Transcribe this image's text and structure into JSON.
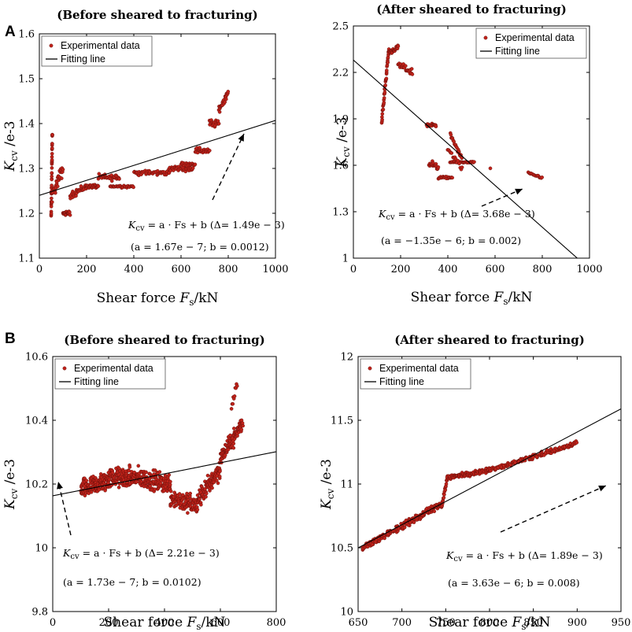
{
  "panels": [
    {
      "letter": "A"
    },
    {
      "letter": "B"
    }
  ],
  "chart_data": [
    {
      "id": "A_left",
      "type": "scatter",
      "panel": "A",
      "title": "(Before sheared to fracturing)",
      "xlabel_text": "Shear force ",
      "xlabel_sym": "F",
      "xlabel_sub": "s",
      "xlabel_unit": "/kN",
      "ylabel_sym": "K",
      "ylabel_sub": "cv",
      "ylabel_unit": " /e-3",
      "xlim": [
        0,
        1000
      ],
      "ylim": [
        1.1,
        1.6
      ],
      "xticks": [
        0,
        200,
        400,
        600,
        800,
        1000
      ],
      "yticks": [
        1.1,
        1.2,
        1.3,
        1.4,
        1.5,
        1.6
      ],
      "xtick_labels": [
        "0",
        "200",
        "400",
        "600",
        "800",
        "1000"
      ],
      "ytick_labels": [
        "1.1",
        "1.2",
        "1.3",
        "1.4",
        "1.5",
        "1.6"
      ],
      "legend": [
        "Experimental data",
        "Fitting line"
      ],
      "legend_position": "top-left",
      "fit": {
        "slope": 0.000167,
        "intercept": 1.24
      },
      "equation": "K_cv = a · Fs + b (Δ= 1.49e − 3)",
      "equation_lhs": "K",
      "equation_lhs_sub": "cv",
      "equation_rhs": " = a · Fs + b (Δ= 1.49e − 3)",
      "params": "(a = 1.67e − 7; b = 0.0012)",
      "series_segments": [
        {
          "x": [
            50,
            55
          ],
          "y": [
            1.19,
            1.38
          ],
          "n": 40,
          "jitter": 0.015
        },
        {
          "x": [
            55,
            100
          ],
          "y": [
            1.24,
            1.3
          ],
          "n": 30,
          "jitter": 0.02
        },
        {
          "x": [
            100,
            130
          ],
          "y": [
            1.2,
            1.2
          ],
          "n": 20,
          "jitter": 0.006
        },
        {
          "x": [
            130,
            200
          ],
          "y": [
            1.24,
            1.26
          ],
          "n": 30,
          "jitter": 0.012
        },
        {
          "x": [
            200,
            250
          ],
          "y": [
            1.26,
            1.26
          ],
          "n": 25,
          "jitter": 0.006
        },
        {
          "x": [
            250,
            340
          ],
          "y": [
            1.28,
            1.28
          ],
          "n": 35,
          "jitter": 0.01
        },
        {
          "x": [
            300,
            400
          ],
          "y": [
            1.26,
            1.26
          ],
          "n": 30,
          "jitter": 0.004
        },
        {
          "x": [
            400,
            550
          ],
          "y": [
            1.29,
            1.29
          ],
          "n": 50,
          "jitter": 0.008
        },
        {
          "x": [
            550,
            650
          ],
          "y": [
            1.3,
            1.3
          ],
          "n": 40,
          "jitter": 0.008
        },
        {
          "x": [
            600,
            660
          ],
          "y": [
            1.31,
            1.31
          ],
          "n": 20,
          "jitter": 0.005
        },
        {
          "x": [
            660,
            720
          ],
          "y": [
            1.34,
            1.34
          ],
          "n": 25,
          "jitter": 0.01
        },
        {
          "x": [
            720,
            760
          ],
          "y": [
            1.4,
            1.4
          ],
          "n": 20,
          "jitter": 0.012
        },
        {
          "x": [
            760,
            800
          ],
          "y": [
            1.43,
            1.47
          ],
          "n": 25,
          "jitter": 0.01
        }
      ]
    },
    {
      "id": "A_right",
      "type": "scatter",
      "panel": "A",
      "title": "(After sheared to fracturing)",
      "xlabel_text": "Shear force ",
      "xlabel_sym": "F",
      "xlabel_sub": "s",
      "xlabel_unit": "/kN",
      "ylabel_sym": "K",
      "ylabel_sub": "cv",
      "ylabel_unit": " /e-3",
      "xlim": [
        0,
        1000
      ],
      "ylim": [
        1,
        2.5
      ],
      "xticks": [
        0,
        200,
        400,
        600,
        800,
        1000
      ],
      "yticks": [
        1,
        1.3,
        1.6,
        1.9,
        2.2,
        2.5
      ],
      "xtick_labels": [
        "0",
        "200",
        "400",
        "600",
        "800",
        "1000"
      ],
      "ytick_labels": [
        "1",
        "1.3",
        "1.6",
        "1.9",
        "2.2",
        "2.5"
      ],
      "legend": [
        "Experimental data",
        "Fitting line"
      ],
      "legend_position": "top-right",
      "fit": {
        "slope": -0.00135,
        "intercept": 2.28
      },
      "equation": "K_cv = a · Fs + b (Δ= 3.68e − 3)",
      "equation_lhs": "K",
      "equation_lhs_sub": "cv",
      "equation_rhs": " = a · Fs + b (Δ= 3.68e − 3)",
      "params": "(a = −1.35e − 6; b = 0.002)",
      "series_segments": [
        {
          "x": [
            120,
            150
          ],
          "y": [
            1.88,
            2.35
          ],
          "n": 40,
          "jitter": 0.03
        },
        {
          "x": [
            150,
            190
          ],
          "y": [
            2.33,
            2.36
          ],
          "n": 25,
          "jitter": 0.02
        },
        {
          "x": [
            190,
            250
          ],
          "y": [
            2.25,
            2.2
          ],
          "n": 25,
          "jitter": 0.03
        },
        {
          "x": [
            310,
            350
          ],
          "y": [
            1.86,
            1.86
          ],
          "n": 20,
          "jitter": 0.02
        },
        {
          "x": [
            320,
            360
          ],
          "y": [
            1.62,
            1.58
          ],
          "n": 20,
          "jitter": 0.03
        },
        {
          "x": [
            360,
            420
          ],
          "y": [
            1.52,
            1.52
          ],
          "n": 20,
          "jitter": 0.01
        },
        {
          "x": [
            410,
            510
          ],
          "y": [
            1.62,
            1.62
          ],
          "n": 35,
          "jitter": 0.006
        },
        {
          "x": [
            410,
            460
          ],
          "y": [
            1.8,
            1.64
          ],
          "n": 20,
          "jitter": 0.02
        },
        {
          "x": [
            400,
            460
          ],
          "y": [
            1.7,
            1.58
          ],
          "n": 15,
          "jitter": 0.03
        },
        {
          "x": [
            580,
            580
          ],
          "y": [
            1.58,
            1.58
          ],
          "n": 1,
          "jitter": 0.0
        },
        {
          "x": [
            740,
            800
          ],
          "y": [
            1.55,
            1.52
          ],
          "n": 15,
          "jitter": 0.01
        }
      ]
    },
    {
      "id": "B_left",
      "type": "scatter",
      "panel": "B",
      "title": "(Before sheared to fracturing)",
      "xlabel_text": "Shear force ",
      "xlabel_sym": "F",
      "xlabel_sub": "s",
      "xlabel_unit": "/kN",
      "ylabel_sym": "K",
      "ylabel_sub": "cv",
      "ylabel_unit": " /e-3",
      "xlim": [
        0,
        800
      ],
      "ylim": [
        9.8,
        10.6
      ],
      "xticks": [
        0,
        200,
        400,
        600,
        800
      ],
      "yticks": [
        9.8,
        10,
        10.2,
        10.4,
        10.6
      ],
      "xtick_labels": [
        "0",
        "200",
        "400",
        "600",
        "800"
      ],
      "ytick_labels": [
        "9.8",
        "10",
        "10.2",
        "10.4",
        "10.6"
      ],
      "legend": [
        "Experimental data",
        "Fitting line"
      ],
      "legend_position": "top-left",
      "fit": {
        "slope": 0.000173,
        "intercept": 10.163
      },
      "equation": "K_cv = a · Fs + b (Δ= 2.21e − 3)",
      "equation_lhs": "K",
      "equation_lhs_sub": "cv",
      "equation_rhs": " = a · Fs + b (Δ= 2.21e − 3)",
      "params": "(a = 1.73e − 7; b = 0.0102)",
      "series_segments": [
        {
          "x": [
            100,
            200
          ],
          "y": [
            10.18,
            10.21
          ],
          "n": 140,
          "jitter": 0.045
        },
        {
          "x": [
            200,
            300
          ],
          "y": [
            10.22,
            10.22
          ],
          "n": 140,
          "jitter": 0.045
        },
        {
          "x": [
            300,
            420
          ],
          "y": [
            10.22,
            10.2
          ],
          "n": 150,
          "jitter": 0.045
        },
        {
          "x": [
            420,
            520
          ],
          "y": [
            10.16,
            10.13
          ],
          "n": 120,
          "jitter": 0.045
        },
        {
          "x": [
            520,
            600
          ],
          "y": [
            10.15,
            10.25
          ],
          "n": 100,
          "jitter": 0.045
        },
        {
          "x": [
            600,
            680
          ],
          "y": [
            10.28,
            10.39
          ],
          "n": 100,
          "jitter": 0.035
        },
        {
          "x": [
            640,
            660
          ],
          "y": [
            10.44,
            10.52
          ],
          "n": 10,
          "jitter": 0.02
        }
      ]
    },
    {
      "id": "B_right",
      "type": "scatter",
      "panel": "B",
      "title": "(After sheared to fracturing)",
      "xlabel_text": "Shear force ",
      "xlabel_sym": "F",
      "xlabel_sub": "s",
      "xlabel_unit": "/kN",
      "ylabel_sym": "K",
      "ylabel_sub": "cv",
      "ylabel_unit": " /e-3",
      "xlim": [
        650,
        950
      ],
      "ylim": [
        10,
        12
      ],
      "xticks": [
        650,
        700,
        750,
        800,
        850,
        900,
        950
      ],
      "yticks": [
        10,
        10.5,
        11,
        11.5,
        12
      ],
      "xtick_labels": [
        "650",
        "700",
        "750",
        "800",
        "850",
        "900",
        "950"
      ],
      "ytick_labels": [
        "10",
        "10.5",
        "11",
        "11.5",
        "12"
      ],
      "legend": [
        "Experimental data",
        "Fitting line"
      ],
      "legend_position": "top-left",
      "fit": {
        "slope": 0.003633,
        "intercept": 8.138
      },
      "equation": "K_cv = a · Fs + b (Δ= 1.89e − 3)",
      "equation_lhs": "K",
      "equation_lhs_sub": "cv",
      "equation_rhs": " = a · Fs + b (Δ= 1.89e − 3)",
      "params": "(a = 3.63e − 6; b = 0.008)",
      "series_segments": [
        {
          "x": [
            655,
            745
          ],
          "y": [
            10.5,
            10.84
          ],
          "n": 180,
          "jitter": 0.035
        },
        {
          "x": [
            745,
            752
          ],
          "y": [
            10.82,
            11.05
          ],
          "n": 20,
          "jitter": 0.03
        },
        {
          "x": [
            752,
            800
          ],
          "y": [
            11.05,
            11.11
          ],
          "n": 100,
          "jitter": 0.025
        },
        {
          "x": [
            800,
            900
          ],
          "y": [
            11.11,
            11.32
          ],
          "n": 180,
          "jitter": 0.025
        }
      ]
    }
  ]
}
